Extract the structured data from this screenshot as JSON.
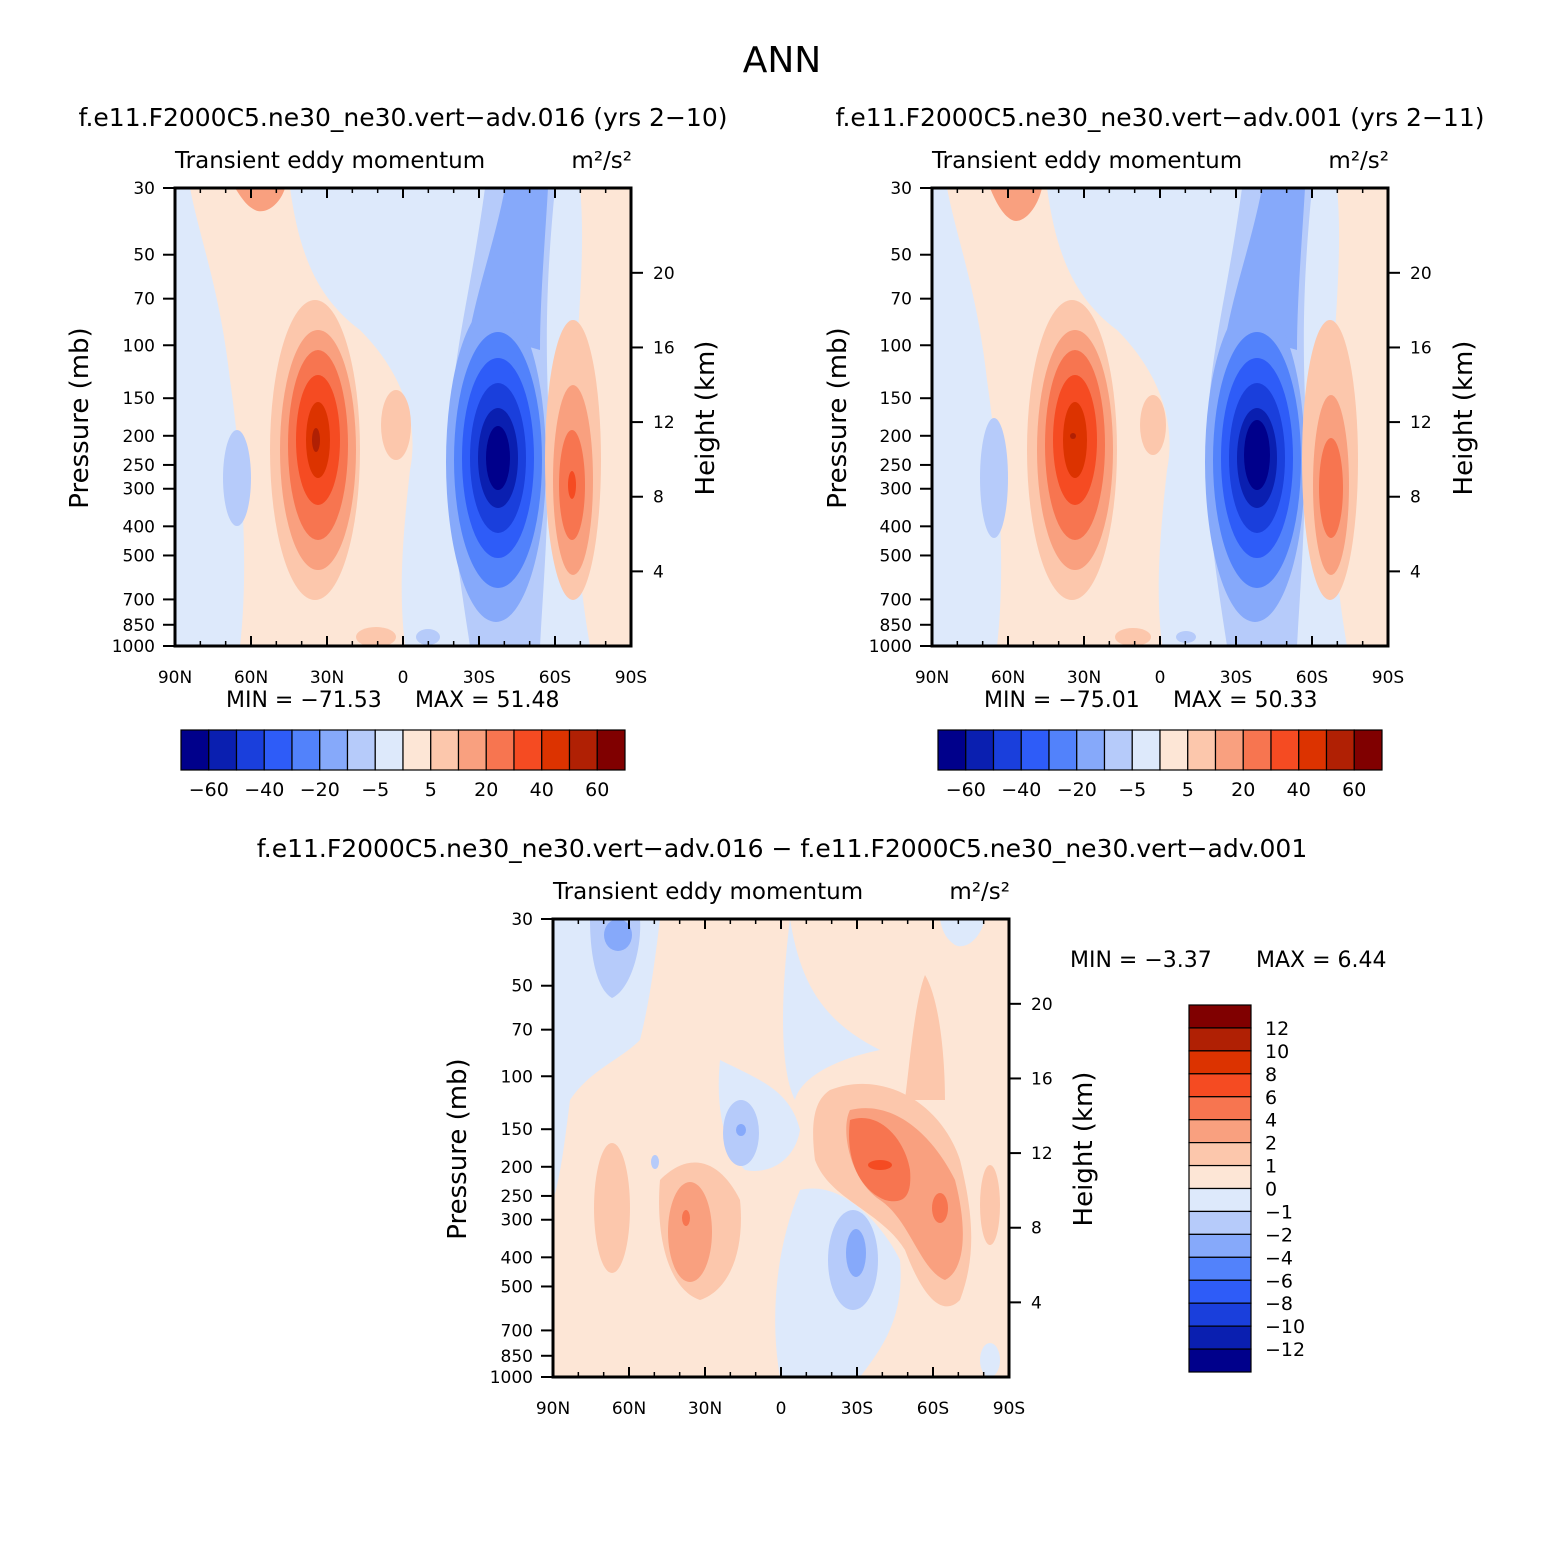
{
  "figure_title": "ANN",
  "panels": [
    {
      "id": "test",
      "case_title": "f.e11.F2000C5.ne30_ne30.vert−adv.016 (yrs 2−10)",
      "variable": "Transient eddy momentum",
      "units": "m²/s²",
      "ylabel_left": "Pressure (mb)",
      "ylabel_right": "Height (km)",
      "min_label": "MIN = −71.53",
      "max_label": "MAX = 51.48"
    },
    {
      "id": "control",
      "case_title": "f.e11.F2000C5.ne30_ne30.vert−adv.001 (yrs 2−11)",
      "variable": "Transient eddy momentum",
      "units": "m²/s²",
      "ylabel_left": "Pressure (mb)",
      "ylabel_right": "Height (km)",
      "min_label": "MIN = −75.01",
      "max_label": "MAX = 50.33"
    },
    {
      "id": "diff",
      "case_title": "f.e11.F2000C5.ne30_ne30.vert−adv.016 − f.e11.F2000C5.ne30_ne30.vert−adv.001",
      "variable": "Transient eddy momentum",
      "units": "m²/s²",
      "ylabel_left": "Pressure (mb)",
      "ylabel_right": "Height (km)",
      "min_label": "MIN = −3.37",
      "max_label": "MAX = 6.44"
    }
  ],
  "colors": {
    "levels_16": [
      "#00008b",
      "#0a1fb0",
      "#1a3fdc",
      "#2e5cf8",
      "#5282fb",
      "#86a9fa",
      "#b6cbfa",
      "#dde9fb",
      "#fde6d6",
      "#fcc7ac",
      "#f9a07f",
      "#f77550",
      "#f54b22",
      "#dc3300",
      "#b02004",
      "#800000"
    ],
    "zero_white": "#ffffff"
  },
  "chart_data": [
    {
      "type": "heatmap",
      "panel": "test",
      "title": "Transient eddy momentum",
      "units": "m²/s²",
      "x_ticks": [
        "90N",
        "60N",
        "30N",
        "0",
        "30S",
        "60S",
        "90S"
      ],
      "y_ticks_pressure": [
        30,
        50,
        70,
        100,
        150,
        200,
        250,
        300,
        400,
        500,
        700,
        850,
        1000
      ],
      "y_ticks_height_km": [
        20,
        16,
        12,
        8,
        4
      ],
      "ylim_mb": [
        1000,
        30
      ],
      "contour_levels": [
        -70,
        -60,
        -50,
        -40,
        -30,
        -20,
        -10,
        -5,
        0,
        5,
        10,
        20,
        30,
        40,
        50,
        60,
        70
      ],
      "colorbar_labels": [
        "−60",
        "−40",
        "−20",
        "−5",
        "5",
        "20",
        "40",
        "60"
      ],
      "min": -71.53,
      "max": 51.48,
      "features": [
        {
          "lat": -38,
          "p_mb": 240,
          "value": -71.53
        },
        {
          "lat": 33,
          "p_mb": 210,
          "value": 51.48
        },
        {
          "lat": -66,
          "p_mb": 300,
          "value": 40
        },
        {
          "lat": 63,
          "p_mb": 280,
          "value": -8
        },
        {
          "lat": 2,
          "p_mb": 190,
          "value": 12
        }
      ]
    },
    {
      "type": "heatmap",
      "panel": "control",
      "title": "Transient eddy momentum",
      "units": "m²/s²",
      "x_ticks": [
        "90N",
        "60N",
        "30N",
        "0",
        "30S",
        "60S",
        "90S"
      ],
      "y_ticks_pressure": [
        30,
        50,
        70,
        100,
        150,
        200,
        250,
        300,
        400,
        500,
        700,
        850,
        1000
      ],
      "y_ticks_height_km": [
        20,
        16,
        12,
        8,
        4
      ],
      "ylim_mb": [
        1000,
        30
      ],
      "contour_levels": [
        -70,
        -60,
        -50,
        -40,
        -30,
        -20,
        -10,
        -5,
        0,
        5,
        10,
        20,
        30,
        40,
        50,
        60,
        70
      ],
      "colorbar_labels": [
        "−60",
        "−40",
        "−20",
        "−5",
        "5",
        "20",
        "40",
        "60"
      ],
      "min": -75.01,
      "max": 50.33,
      "features": [
        {
          "lat": -39,
          "p_mb": 240,
          "value": -75.01
        },
        {
          "lat": 33,
          "p_mb": 210,
          "value": 50.33
        },
        {
          "lat": -67,
          "p_mb": 300,
          "value": 30
        },
        {
          "lat": 63,
          "p_mb": 280,
          "value": -8
        },
        {
          "lat": 2,
          "p_mb": 190,
          "value": 12
        }
      ]
    },
    {
      "type": "heatmap",
      "panel": "diff",
      "title": "Transient eddy momentum",
      "units": "m²/s²",
      "x_ticks": [
        "90N",
        "60N",
        "30N",
        "0",
        "30S",
        "60S",
        "90S"
      ],
      "y_ticks_pressure": [
        30,
        50,
        70,
        100,
        150,
        200,
        250,
        300,
        400,
        500,
        700,
        850,
        1000
      ],
      "y_ticks_height_km": [
        20,
        16,
        12,
        8,
        4
      ],
      "ylim_mb": [
        1000,
        30
      ],
      "contour_levels": [
        -14,
        -12,
        -10,
        -8,
        -6,
        -4,
        -2,
        -1,
        0,
        1,
        2,
        4,
        6,
        8,
        10,
        12,
        14
      ],
      "colorbar_labels": [
        "12",
        "10",
        "8",
        "6",
        "4",
        "2",
        "1",
        "0",
        "−1",
        "−2",
        "−4",
        "−6",
        "−8",
        "−10",
        "−12"
      ],
      "min": -3.37,
      "max": 6.44,
      "features": [
        {
          "lat": -38,
          "p_mb": 190,
          "value": 6.44
        },
        {
          "lat": -62,
          "p_mb": 320,
          "value": 4
        },
        {
          "lat": 35,
          "p_mb": 310,
          "value": 3
        },
        {
          "lat": -30,
          "p_mb": 420,
          "value": -3.37
        },
        {
          "lat": 15,
          "p_mb": 140,
          "value": -2
        },
        {
          "lat": 63,
          "p_mb": 35,
          "value": -2
        }
      ]
    }
  ]
}
